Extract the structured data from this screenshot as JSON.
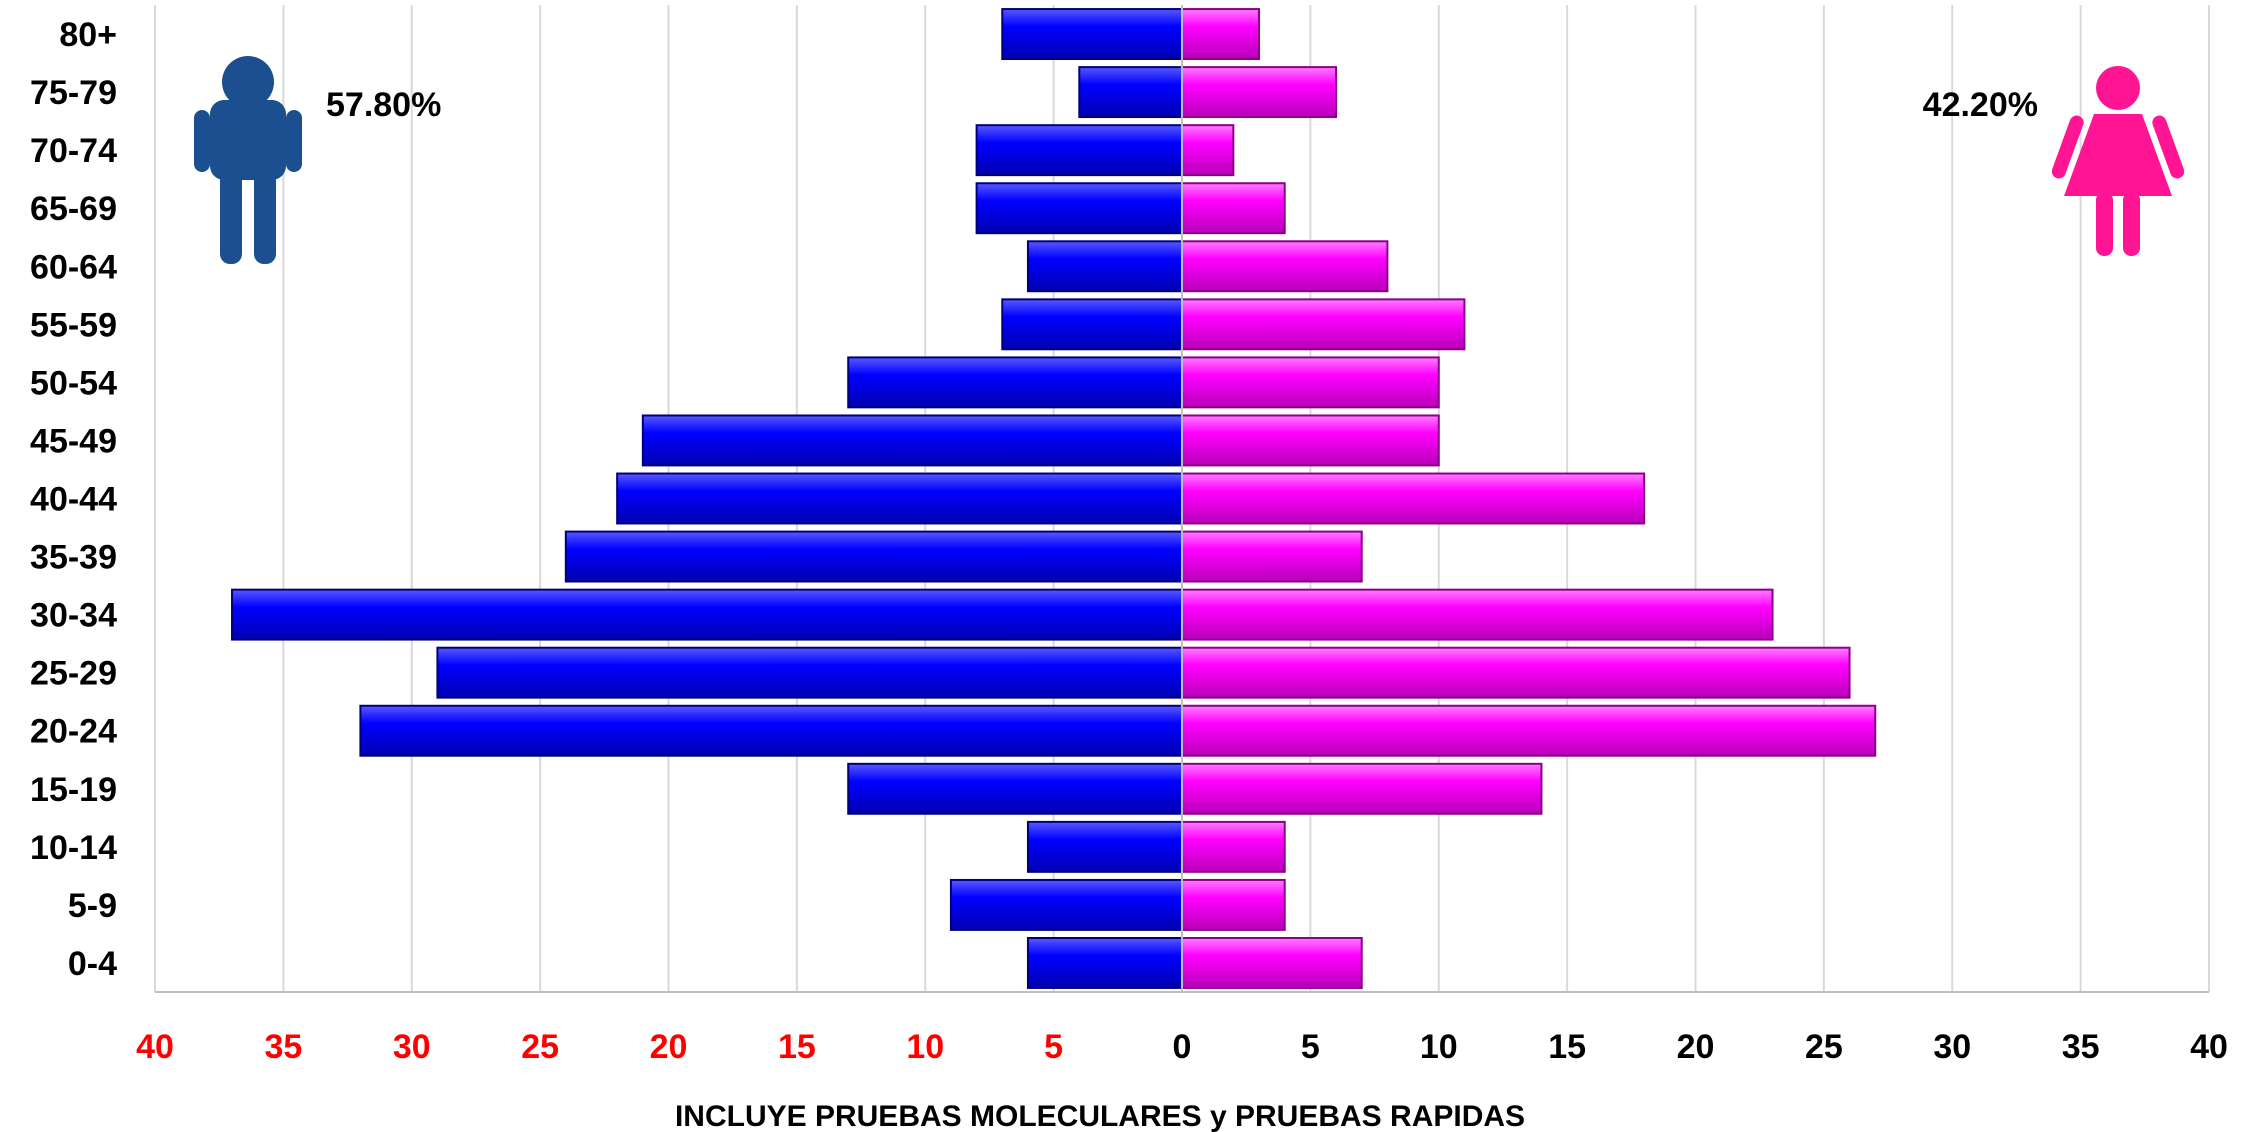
{
  "chart_data": {
    "type": "bar",
    "orientation": "horizontal-population-pyramid",
    "categories": [
      "80+",
      "75-79",
      "70-74",
      "65-69",
      "60-64",
      "55-59",
      "50-54",
      "45-49",
      "40-44",
      "35-39",
      "30-34",
      "25-29",
      "20-24",
      "15-19",
      "10-14",
      "5-9",
      "0-4"
    ],
    "series": [
      {
        "values": [
          7,
          4,
          8,
          8,
          6,
          7,
          13,
          21,
          22,
          24,
          37,
          29,
          32,
          13,
          6,
          9,
          6
        ],
        "color": "#0000FF"
      },
      {
        "values": [
          3,
          6,
          2,
          4,
          8,
          11,
          10,
          10,
          18,
          7,
          23,
          26,
          27,
          14,
          4,
          4,
          7
        ],
        "color": "#FF00FF"
      }
    ],
    "xlim": [
      -40,
      40
    ],
    "x_ticks_left": [
      "40",
      "35",
      "30",
      "25",
      "20",
      "15",
      "10",
      "5"
    ],
    "x_ticks_right": [
      "0",
      "5",
      "10",
      "15",
      "20",
      "25",
      "30",
      "35",
      "40"
    ],
    "left_tick_color": "#FF0000",
    "right_tick_color": "#000000",
    "xlabel": "INCLUYE PRUEBAS MOLECULARES y PRUEBAS RAPIDAS",
    "grid": "vertical",
    "annotations": {
      "male_percent": "57.80%",
      "female_percent": "42.20%"
    },
    "icons": {
      "male": {
        "name": "male-person-icon",
        "color": "#1B4F8F"
      },
      "female": {
        "name": "female-person-icon",
        "color": "#FF1493"
      }
    }
  }
}
